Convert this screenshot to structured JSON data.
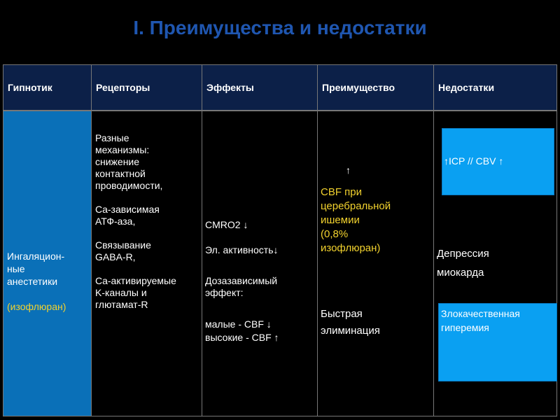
{
  "title": "I. Преимущества и недостатки",
  "headers": [
    "Гипнотик",
    "Рецепторы",
    "Эффекты",
    "Преимущество",
    "Недостатки"
  ],
  "hypnotic": {
    "line1": "Ингаляцион-\nные\nанестетики",
    "line2": "(изофлюран)"
  },
  "receptors": "Разные\nмеханизмы:\nснижение\nконтактной\nпроводимости,\n\nCa-зависимая\nАТФ-аза,\n\nСвязывание\nGABA-R,\n\nCa-активируемые\nK-каналы и\nглютамат-R",
  "effects": {
    "cmro2": "CMRO2",
    "el_activity": "Эл. активность",
    "dose": "Дозазависимый\nэффект:",
    "low": "малые - CBF",
    "high": "высокие - CBF"
  },
  "advantage": {
    "cbf": "CBF   при\nцеребральной\nишемии\n(0,8%\nизофлюран)",
    "elimination": "Быстрая\nэлиминация"
  },
  "disadvantages": {
    "icp": "ICP // CBV",
    "depression": "Депрессия\nмиокарда",
    "hyperemia": "Злокачественная\nгиперемия"
  },
  "colors": {
    "title": "#1f56b0",
    "header_bg": "#0c2048",
    "first_col_bg": "#0a70b8",
    "box": "#0aa0f2",
    "highlight": "#f2d22e"
  },
  "icons": {
    "up": "↑",
    "down": "↓"
  }
}
